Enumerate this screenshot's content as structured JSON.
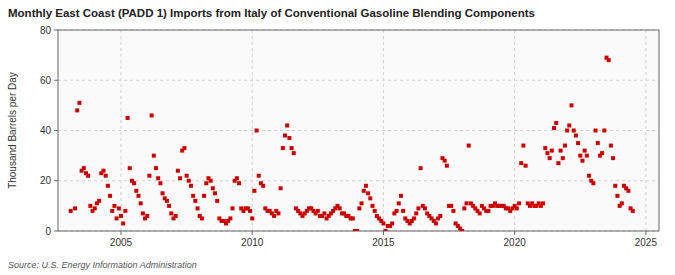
{
  "chart_data": {
    "type": "scatter",
    "title": "Monthly East Coast (PADD 1) Imports from Italy of Conventional Gasoline Blending Components",
    "ylabel": "Thousand Barrels per Day",
    "source": "Source: U.S. Energy Information Administration",
    "color": "#cc0000",
    "marker": "square",
    "grid": true,
    "xlim": [
      2002.6,
      2025.5
    ],
    "ylim": [
      0,
      80
    ],
    "xticks": [
      2005,
      2010,
      2015,
      2020,
      2025
    ],
    "yticks": [
      0,
      20,
      40,
      60,
      80
    ],
    "x": [
      2003.083,
      2003.25,
      2003.333,
      2003.417,
      2003.5,
      2003.583,
      2003.667,
      2003.75,
      2003.833,
      2003.917,
      2004.0,
      2004.083,
      2004.167,
      2004.25,
      2004.333,
      2004.417,
      2004.5,
      2004.583,
      2004.667,
      2004.75,
      2004.833,
      2004.917,
      2005.0,
      2005.083,
      2005.167,
      2005.25,
      2005.333,
      2005.417,
      2005.5,
      2005.583,
      2005.667,
      2005.75,
      2005.833,
      2005.917,
      2006.0,
      2006.083,
      2006.167,
      2006.25,
      2006.333,
      2006.417,
      2006.5,
      2006.583,
      2006.667,
      2006.75,
      2006.833,
      2006.917,
      2007.0,
      2007.083,
      2007.167,
      2007.25,
      2007.333,
      2007.417,
      2007.5,
      2007.583,
      2007.667,
      2007.75,
      2007.833,
      2007.917,
      2008.0,
      2008.083,
      2008.167,
      2008.25,
      2008.333,
      2008.417,
      2008.5,
      2008.583,
      2008.667,
      2008.75,
      2008.833,
      2008.917,
      2009.0,
      2009.083,
      2009.167,
      2009.25,
      2009.333,
      2009.417,
      2009.5,
      2009.583,
      2009.667,
      2009.75,
      2009.833,
      2009.917,
      2010.0,
      2010.083,
      2010.167,
      2010.25,
      2010.333,
      2010.417,
      2010.5,
      2010.583,
      2010.667,
      2010.75,
      2010.833,
      2010.917,
      2011.0,
      2011.083,
      2011.167,
      2011.25,
      2011.333,
      2011.417,
      2011.5,
      2011.583,
      2011.667,
      2011.75,
      2011.833,
      2011.917,
      2012.0,
      2012.083,
      2012.167,
      2012.25,
      2012.333,
      2012.417,
      2012.5,
      2012.583,
      2012.667,
      2012.75,
      2012.833,
      2012.917,
      2013.0,
      2013.083,
      2013.167,
      2013.25,
      2013.333,
      2013.417,
      2013.5,
      2013.583,
      2013.667,
      2013.75,
      2013.833,
      2013.917,
      2014.0,
      2014.083,
      2014.167,
      2014.25,
      2014.333,
      2014.417,
      2014.5,
      2014.583,
      2014.667,
      2014.75,
      2014.833,
      2014.917,
      2015.0,
      2015.083,
      2015.167,
      2015.25,
      2015.333,
      2015.417,
      2015.5,
      2015.583,
      2015.667,
      2015.75,
      2015.833,
      2015.917,
      2016.0,
      2016.083,
      2016.167,
      2016.25,
      2016.333,
      2016.417,
      2016.5,
      2016.583,
      2016.667,
      2016.75,
      2016.833,
      2016.917,
      2017.0,
      2017.083,
      2017.167,
      2017.25,
      2017.333,
      2017.417,
      2017.5,
      2017.583,
      2017.667,
      2017.75,
      2017.833,
      2017.917,
      2018.0,
      2018.083,
      2018.167,
      2018.25,
      2018.333,
      2018.417,
      2018.5,
      2018.583,
      2018.667,
      2018.75,
      2018.833,
      2018.917,
      2019.0,
      2019.083,
      2019.167,
      2019.25,
      2019.333,
      2019.417,
      2019.5,
      2019.583,
      2019.667,
      2019.75,
      2019.833,
      2019.917,
      2020.0,
      2020.083,
      2020.167,
      2020.25,
      2020.333,
      2020.417,
      2020.5,
      2020.583,
      2020.667,
      2020.75,
      2020.833,
      2020.917,
      2021.0,
      2021.083,
      2021.167,
      2021.25,
      2021.333,
      2021.417,
      2021.5,
      2021.583,
      2021.667,
      2021.75,
      2021.833,
      2021.917,
      2022.0,
      2022.083,
      2022.167,
      2022.25,
      2022.333,
      2022.417,
      2022.5,
      2022.583,
      2022.667,
      2022.75,
      2022.833,
      2022.917,
      2023.0,
      2023.083,
      2023.167,
      2023.25,
      2023.333,
      2023.417,
      2023.5,
      2023.583,
      2023.667,
      2023.75,
      2023.833,
      2023.917,
      2024.0,
      2024.083,
      2024.167,
      2024.25,
      2024.333,
      2024.417,
      2024.5
    ],
    "values": [
      8,
      9,
      48,
      51,
      24,
      25,
      23,
      22,
      10,
      8,
      9,
      11,
      12,
      23,
      24,
      22,
      18,
      14,
      8,
      10,
      5,
      9,
      6,
      3,
      8,
      45,
      25,
      20,
      19,
      16,
      14,
      11,
      7,
      5,
      6,
      22,
      46,
      30,
      25,
      21,
      19,
      15,
      13,
      12,
      10,
      7,
      5,
      6,
      24,
      21,
      32,
      33,
      22,
      20,
      18,
      14,
      12,
      9,
      6,
      5,
      14,
      19,
      21,
      20,
      17,
      15,
      12,
      5,
      4,
      4,
      3,
      4,
      5,
      9,
      20,
      21,
      19,
      9,
      8,
      9,
      9,
      8,
      5,
      16,
      40,
      22,
      19,
      18,
      9,
      8,
      8,
      7,
      6,
      8,
      7,
      17,
      33,
      38,
      42,
      37,
      33,
      31,
      9,
      8,
      7,
      6,
      7,
      8,
      9,
      9,
      8,
      7,
      8,
      6,
      6,
      7,
      5,
      6,
      7,
      8,
      9,
      10,
      9,
      7,
      7,
      6,
      6,
      5,
      5,
      0,
      0,
      9,
      11,
      16,
      18,
      15,
      13,
      10,
      8,
      6,
      5,
      4,
      3,
      0,
      2,
      2,
      3,
      7,
      8,
      11,
      14,
      8,
      5,
      4,
      3,
      4,
      5,
      7,
      9,
      25,
      10,
      9,
      7,
      6,
      5,
      4,
      3,
      5,
      6,
      29,
      28,
      26,
      10,
      10,
      8,
      3,
      2,
      1,
      0,
      9,
      11,
      34,
      11,
      10,
      9,
      8,
      7,
      10,
      9,
      8,
      8,
      10,
      10,
      11,
      10,
      10,
      10,
      10,
      9,
      9,
      8,
      9,
      10,
      9,
      11,
      27,
      34,
      26,
      11,
      10,
      11,
      10,
      10,
      11,
      10,
      11,
      33,
      31,
      29,
      32,
      41,
      43,
      27,
      32,
      29,
      34,
      40,
      42,
      50,
      40,
      38,
      35,
      30,
      28,
      32,
      30,
      22,
      20,
      19,
      40,
      35,
      30,
      31,
      40,
      69,
      68,
      34,
      29,
      18,
      14,
      10,
      11,
      18,
      17,
      16,
      9,
      8
    ]
  }
}
